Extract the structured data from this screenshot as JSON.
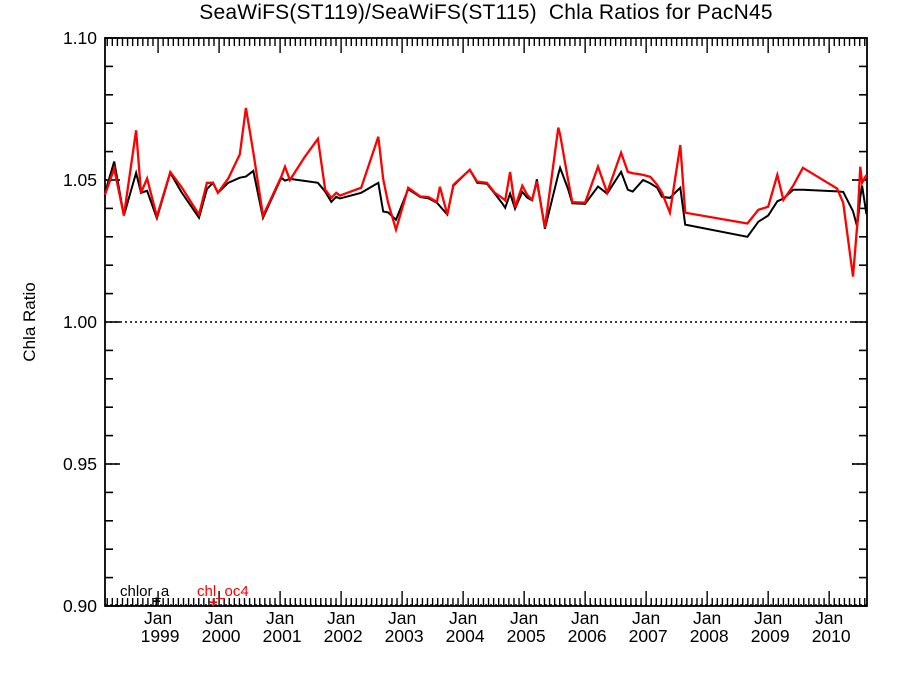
{
  "legend": {
    "items": [
      {
        "label": "chlor_a",
        "color": "#000000",
        "marker": "+"
      },
      {
        "label": "chl_oc4",
        "color": "#ff0000",
        "marker": "+"
      }
    ]
  },
  "chart_data": {
    "type": "line",
    "title": "SeaWiFS(ST119)/SeaWiFS(ST115)  Chla Ratios for PacN45",
    "xlabel": "",
    "ylabel": "Chla Ratio",
    "xlim": [
      1998.13,
      2010.62
    ],
    "ylim": [
      0.9,
      1.1
    ],
    "grid": "dotted line at 1.00 across plot; short dotted stubs at 1.05 and 0.95 near axes",
    "legend_position": "bottom-left inside plot",
    "yticks": [
      {
        "v": 1.1,
        "label": "1.10"
      },
      {
        "v": 1.05,
        "label": "1.05"
      },
      {
        "v": 1.0,
        "label": "1.00"
      },
      {
        "v": 0.95,
        "label": "0.95"
      },
      {
        "v": 0.9,
        "label": "0.90"
      }
    ],
    "ytick_minor_step": 0.01,
    "xticks": [
      {
        "x": 1999,
        "month": "Jan",
        "year": "1999"
      },
      {
        "x": 2000,
        "month": "Jan",
        "year": "2000"
      },
      {
        "x": 2001,
        "month": "Jan",
        "year": "2001"
      },
      {
        "x": 2002,
        "month": "Jan",
        "year": "2002"
      },
      {
        "x": 2003,
        "month": "Jan",
        "year": "2003"
      },
      {
        "x": 2004,
        "month": "Jan",
        "year": "2004"
      },
      {
        "x": 2005,
        "month": "Jan",
        "year": "2005"
      },
      {
        "x": 2006,
        "month": "Jan",
        "year": "2006"
      },
      {
        "x": 2007,
        "month": "Jan",
        "year": "2007"
      },
      {
        "x": 2008,
        "month": "Jan",
        "year": "2008"
      },
      {
        "x": 2009,
        "month": "Jan",
        "year": "2009"
      },
      {
        "x": 2010,
        "month": "Jan",
        "year": "2010"
      }
    ],
    "xtick_minor": "monthly",
    "x": [
      1998.13,
      1998.28,
      1998.44,
      1998.64,
      1998.72,
      1998.82,
      1998.98,
      1999.2,
      1999.38,
      1999.67,
      1999.8,
      1999.9,
      1999.98,
      2000.15,
      2000.34,
      2000.44,
      2000.56,
      2000.72,
      2001.02,
      2001.08,
      2001.16,
      2001.4,
      2001.62,
      2001.74,
      2001.84,
      2001.92,
      2001.98,
      2002.33,
      2002.61,
      2002.69,
      2002.77,
      2002.9,
      2003.1,
      2003.3,
      2003.43,
      2003.57,
      2003.62,
      2003.74,
      2003.84,
      2004.11,
      2004.23,
      2004.39,
      2004.52,
      2004.64,
      2004.69,
      2004.77,
      2004.85,
      2004.97,
      2005.05,
      2005.13,
      2005.21,
      2005.34,
      2005.56,
      2005.59,
      2005.72,
      2005.79,
      2006.0,
      2006.21,
      2006.36,
      2006.59,
      2006.7,
      2006.78,
      2006.95,
      2007.07,
      2007.18,
      2007.26,
      2007.39,
      2007.56,
      2007.64,
      2008.66,
      2008.84,
      2009.0,
      2009.15,
      2009.25,
      2009.41,
      2009.57,
      2010.13,
      2010.23,
      2010.39,
      2010.46,
      2010.51,
      2010.54,
      2010.61
    ],
    "series": [
      {
        "name": "chlor_a",
        "color": "#000000",
        "width": 2,
        "values": [
          1.0455,
          1.0565,
          1.0375,
          1.0525,
          1.0455,
          1.0462,
          1.0365,
          1.0525,
          1.0458,
          1.0367,
          1.0468,
          1.049,
          1.0455,
          1.049,
          1.0508,
          1.0512,
          1.0532,
          1.0367,
          1.0508,
          1.0498,
          1.0504,
          1.0497,
          1.049,
          1.0459,
          1.0423,
          1.0441,
          1.0435,
          1.0455,
          1.049,
          1.0389,
          1.0386,
          1.036,
          1.0468,
          1.044,
          1.0436,
          1.042,
          1.0408,
          1.0378,
          1.048,
          1.0536,
          1.049,
          1.0487,
          1.0452,
          1.0418,
          1.0402,
          1.0452,
          1.0399,
          1.0458,
          1.0438,
          1.0428,
          1.0502,
          1.0328,
          1.052,
          1.0543,
          1.0468,
          1.0418,
          1.0416,
          1.0477,
          1.0452,
          1.0529,
          1.0466,
          1.0459,
          1.05,
          1.0488,
          1.0473,
          1.0441,
          1.0437,
          1.0473,
          1.0343,
          1.03,
          1.0353,
          1.0375,
          1.0425,
          1.0435,
          1.0466,
          1.0466,
          1.046,
          1.0458,
          1.039,
          1.0336,
          1.044,
          1.048,
          1.038
        ]
      },
      {
        "name": "chl_oc4",
        "color": "#ff0000",
        "width": 2.3,
        "values": [
          1.0448,
          1.054,
          1.0375,
          1.0675,
          1.0455,
          1.0505,
          1.0372,
          1.0528,
          1.0476,
          1.0378,
          1.049,
          1.049,
          1.0455,
          1.0505,
          1.059,
          1.0754,
          1.0598,
          1.0374,
          1.0512,
          1.0547,
          1.05,
          1.058,
          1.0645,
          1.0466,
          1.0437,
          1.0455,
          1.0445,
          1.0473,
          1.0652,
          1.0503,
          1.042,
          1.0325,
          1.0473,
          1.0442,
          1.044,
          1.0423,
          1.0476,
          1.0378,
          1.0483,
          1.0536,
          1.0494,
          1.049,
          1.0455,
          1.0437,
          1.0428,
          1.0528,
          1.0404,
          1.048,
          1.0448,
          1.043,
          1.0495,
          1.0332,
          1.0684,
          1.066,
          1.05,
          1.0422,
          1.042,
          1.0547,
          1.0456,
          1.0596,
          1.0529,
          1.0524,
          1.0518,
          1.0511,
          1.0483,
          1.0455,
          1.0385,
          1.0623,
          1.0385,
          1.0347,
          1.0395,
          1.0406,
          1.0518,
          1.043,
          1.048,
          1.0543,
          1.047,
          1.042,
          1.016,
          1.034,
          1.0547,
          1.049,
          1.0518
        ]
      }
    ]
  }
}
